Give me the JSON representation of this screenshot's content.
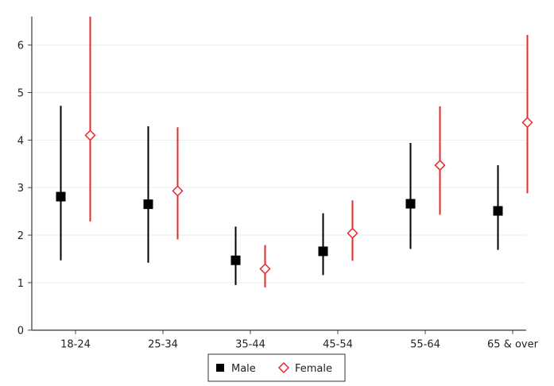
{
  "chart_data": {
    "type": "scatter",
    "title": "",
    "xlabel": "",
    "ylabel": "",
    "categories": [
      "18-24",
      "25-34",
      "35-44",
      "45-54",
      "55-64",
      "65 & over"
    ],
    "ylim": [
      0,
      6.6
    ],
    "yticks": [
      "0",
      "1",
      "2",
      "3",
      "4",
      "5",
      "6"
    ],
    "grid": true,
    "legend_position": "bottom",
    "series": [
      {
        "name": "Male",
        "color": "#000000",
        "marker": "filled-square",
        "values": [
          2.81,
          2.65,
          1.47,
          1.66,
          2.66,
          2.51
        ],
        "lower": [
          1.47,
          1.42,
          0.95,
          1.16,
          1.71,
          1.69
        ],
        "upper": [
          4.72,
          4.29,
          2.18,
          2.46,
          3.94,
          3.47
        ]
      },
      {
        "name": "Female",
        "color": "#e8282b",
        "marker": "hollow-diamond",
        "values": [
          4.1,
          2.93,
          1.29,
          2.04,
          3.47,
          4.37
        ],
        "lower": [
          2.29,
          1.91,
          0.9,
          1.46,
          2.43,
          2.88
        ],
        "upper": [
          6.6,
          4.27,
          1.79,
          2.73,
          4.71,
          6.21
        ]
      }
    ]
  }
}
